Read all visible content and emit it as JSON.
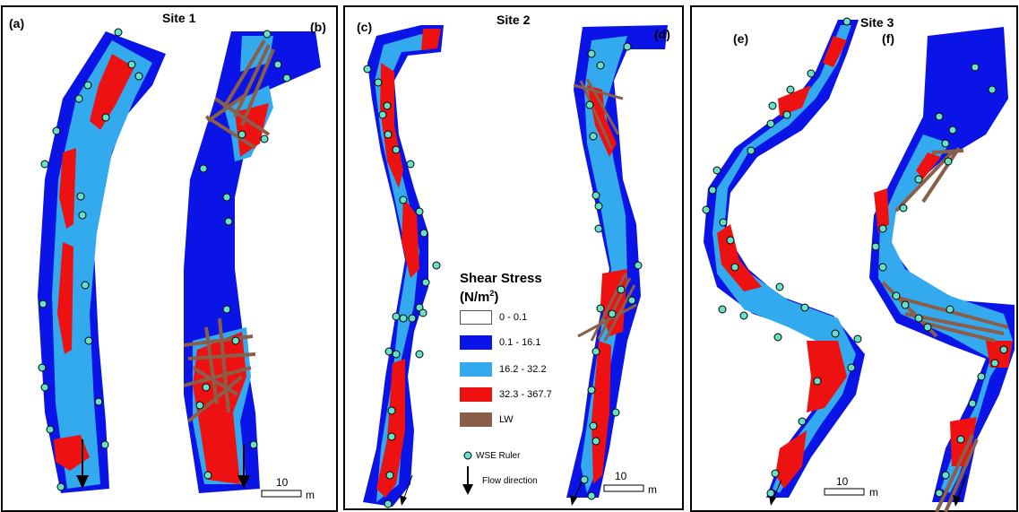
{
  "sites": {
    "site1": "Site 1",
    "site2": "Site 2",
    "site3": "Site 3"
  },
  "panels": {
    "a": "(a)",
    "b": "(b)",
    "c": "(c)",
    "d": "(d)",
    "e": "(e)",
    "f": "(f)"
  },
  "legend": {
    "title_line1": "Shear Stress",
    "title_unit": "(N/m",
    "title_sup": "2",
    "title_close": ")",
    "classes": [
      {
        "label": "0 - 0.1",
        "color": "#ffffff"
      },
      {
        "label": "0.1 - 16.1",
        "color": "#0a14e6"
      },
      {
        "label": "16.2 - 32.2",
        "color": "#33aaee"
      },
      {
        "label": "32.3 - 367.7",
        "color": "#ee1111"
      },
      {
        "label": "LW",
        "color": "#8b5e4a"
      }
    ],
    "ruler_label": "WSE Ruler",
    "ruler_color": "#66e0c8",
    "flow_label": "Flow direction"
  },
  "scales": {
    "value": "10",
    "unit": "m"
  }
}
